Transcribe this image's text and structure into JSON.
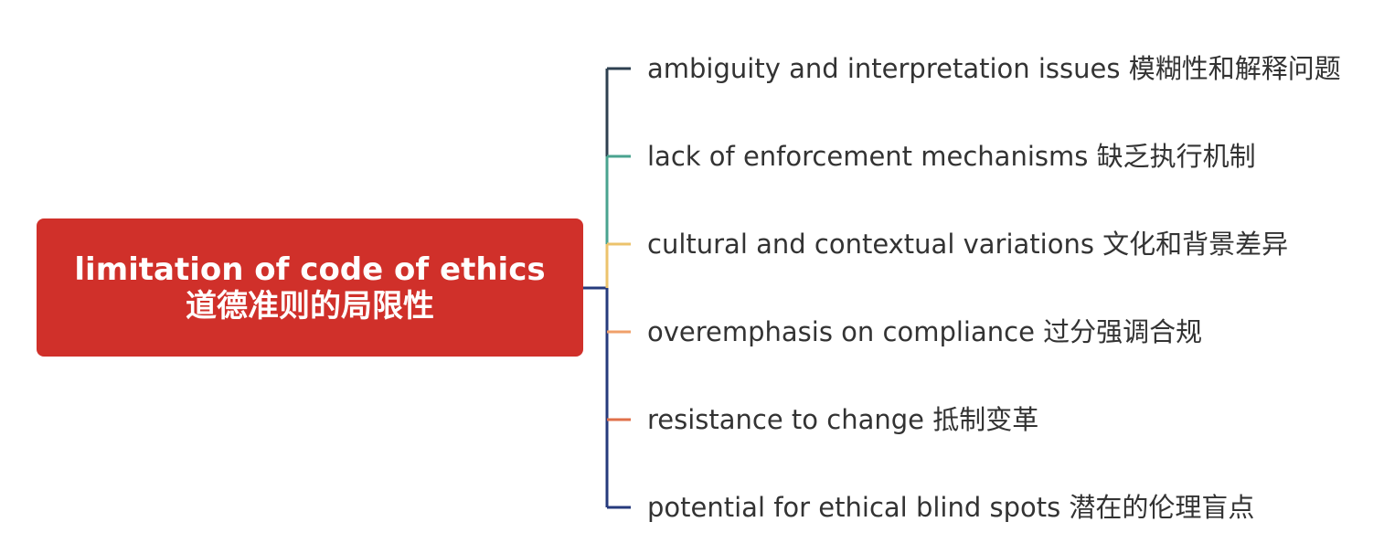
{
  "root": {
    "title_en": "limitation of code of ethics",
    "title_zh": "道德准则的局限性",
    "color": "#d0302a"
  },
  "branches": [
    {
      "label": "ambiguity and interpretation issues 模糊性和解释问题",
      "color": "#2e4050"
    },
    {
      "label": "lack of enforcement mechanisms 缺乏执行机制",
      "color": "#4aa38f"
    },
    {
      "label": "cultural and contextual variations 文化和背景差异",
      "color": "#ecc36c"
    },
    {
      "label": "overemphasis on compliance 过分强调合规",
      "color": "#f0a06a"
    },
    {
      "label": "resistance to change 抵制变革",
      "color": "#e0704a"
    },
    {
      "label": "potential for ethical blind spots 潜在的伦理盲点",
      "color": "#263a7c"
    }
  ],
  "trunk_color": "#263a7c"
}
